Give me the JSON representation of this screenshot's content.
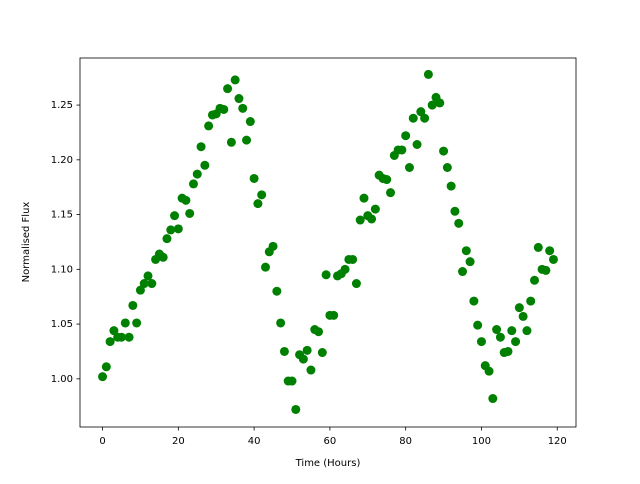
{
  "chart_data": {
    "type": "scatter",
    "xlabel": "Time (Hours)",
    "ylabel": "Normalised Flux",
    "color": "#008000",
    "grid": false,
    "x": [
      0,
      1,
      2,
      3,
      4,
      5,
      6,
      7,
      8,
      9,
      10,
      11,
      12,
      13,
      14,
      15,
      16,
      17,
      18,
      19,
      20,
      21,
      22,
      23,
      24,
      25,
      26,
      27,
      28,
      29,
      30,
      31,
      32,
      33,
      34,
      35,
      36,
      37,
      38,
      39,
      40,
      41,
      42,
      43,
      44,
      45,
      46,
      47,
      48,
      49,
      50,
      51,
      52,
      53,
      54,
      55,
      56,
      57,
      58,
      59,
      60,
      61,
      62,
      63,
      64,
      65,
      66,
      67,
      68,
      69,
      70,
      71,
      72,
      73,
      74,
      75,
      76,
      77,
      78,
      79,
      80,
      81,
      82,
      83,
      84,
      85,
      86,
      87,
      88,
      89,
      90,
      91,
      92,
      93,
      94,
      95,
      96,
      97,
      98,
      99,
      100,
      101,
      102,
      103,
      104,
      105,
      106,
      107,
      108,
      109,
      110,
      111,
      112,
      113,
      114,
      115,
      116,
      117,
      118,
      119
    ],
    "values": [
      1.002,
      1.011,
      1.034,
      1.044,
      1.038,
      1.038,
      1.051,
      1.038,
      1.067,
      1.051,
      1.081,
      1.087,
      1.094,
      1.087,
      1.109,
      1.114,
      1.111,
      1.128,
      1.136,
      1.149,
      1.137,
      1.165,
      1.163,
      1.151,
      1.178,
      1.187,
      1.212,
      1.195,
      1.231,
      1.241,
      1.242,
      1.247,
      1.246,
      1.265,
      1.216,
      1.273,
      1.256,
      1.247,
      1.218,
      1.235,
      1.183,
      1.16,
      1.168,
      1.102,
      1.116,
      1.121,
      1.08,
      1.051,
      1.025,
      0.998,
      0.998,
      0.972,
      1.022,
      1.018,
      1.026,
      1.008,
      1.045,
      1.043,
      1.024,
      1.095,
      1.058,
      1.058,
      1.094,
      1.096,
      1.1,
      1.109,
      1.109,
      1.087,
      1.145,
      1.165,
      1.149,
      1.146,
      1.155,
      1.186,
      1.183,
      1.182,
      1.17,
      1.204,
      1.209,
      1.209,
      1.222,
      1.193,
      1.238,
      1.214,
      1.244,
      1.238,
      1.278,
      1.25,
      1.257,
      1.252,
      1.208,
      1.193,
      1.176,
      1.153,
      1.142,
      1.098,
      1.117,
      1.107,
      1.071,
      1.049,
      1.034,
      1.012,
      1.007,
      0.982,
      1.045,
      1.038,
      1.024,
      1.025,
      1.044,
      1.034,
      1.065,
      1.057,
      1.044,
      1.071,
      1.09,
      1.12,
      1.1,
      1.099,
      1.117,
      1.109
    ],
    "xlim": [
      -5.95,
      124.95
    ],
    "ylim": [
      0.956,
      1.293
    ],
    "xticks": [
      0,
      20,
      40,
      60,
      80,
      100,
      120
    ],
    "yticks": [
      {
        "value": 1,
        "label": "1.00"
      },
      1.05,
      {
        "value": 1.1,
        "label": "1.10"
      },
      1.15,
      {
        "value": 1.2,
        "label": "1.20"
      },
      1.25
    ]
  }
}
